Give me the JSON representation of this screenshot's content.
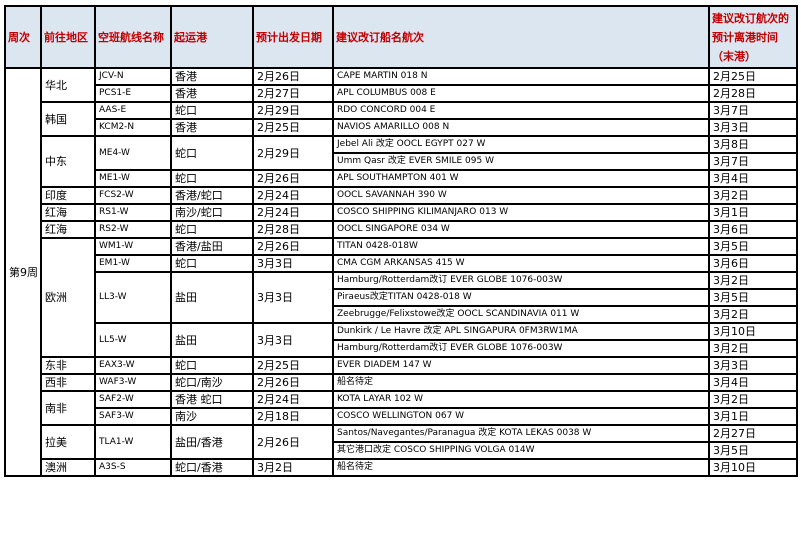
{
  "header": {
    "week": "周次",
    "region": "前往地区",
    "route": "空班航线名称",
    "port": "起运港",
    "date": "预计出发日期",
    "vessel": "建议改订船名航次",
    "eta": "建议改订航次的预计离港时间（末港）"
  },
  "week": "第9周",
  "colors": {
    "header_bg": "#dce6f1",
    "header_text": "#c00000"
  },
  "regions": [
    {
      "region": "华北",
      "routes": [
        {
          "route": "JCV-N",
          "port": "香港",
          "date": "2月26日",
          "vessels": [
            {
              "name": "CAPE MARTIN 018 N",
              "eta": "2月25日"
            }
          ]
        },
        {
          "route": "PCS1-E",
          "port": "香港",
          "date": "2月27日",
          "vessels": [
            {
              "name": "APL COLUMBUS 008 E",
              "eta": "2月28日"
            }
          ]
        }
      ]
    },
    {
      "region": "韩国",
      "routes": [
        {
          "route": "AAS-E",
          "port": "蛇口",
          "date": "2月29日",
          "vessels": [
            {
              "name": "RDO CONCORD 004 E",
              "eta": "3月7日"
            }
          ]
        },
        {
          "route": "KCM2-N",
          "port": "香港",
          "date": "2月25日",
          "vessels": [
            {
              "name": "NAVIOS AMARILLO 008 N",
              "eta": "3月3日"
            }
          ]
        }
      ]
    },
    {
      "region": "中东",
      "routes": [
        {
          "route": "ME4-W",
          "port": "蛇口",
          "date": "2月29日",
          "vessels": [
            {
              "name": "Jebel Ali 改定 OOCL EGYPT 027 W",
              "eta": "3月8日"
            },
            {
              "name": "Umm Qasr 改定 EVER SMILE 095 W",
              "eta": "3月7日"
            }
          ]
        },
        {
          "route": "ME1-W",
          "port": "蛇口",
          "date": "2月26日",
          "vessels": [
            {
              "name": "APL SOUTHAMPTON 401 W",
              "eta": "3月4日"
            }
          ]
        }
      ]
    },
    {
      "region": "印度",
      "routes": [
        {
          "route": "FCS2-W",
          "port": "香港/蛇口",
          "date": "2月24日",
          "vessels": [
            {
              "name": "OOCL SAVANNAH 390 W",
              "eta": "3月2日"
            }
          ]
        }
      ]
    },
    {
      "region": "红海",
      "routes": [
        {
          "route": "RS1-W",
          "port": "南沙/蛇口",
          "date": "2月24日",
          "vessels": [
            {
              "name": "COSCO SHIPPING KILIMANJARO 013 W",
              "eta": "3月1日"
            }
          ]
        }
      ]
    },
    {
      "region": "红海",
      "routes": [
        {
          "route": "RS2-W",
          "port": "蛇口",
          "date": "2月28日",
          "vessels": [
            {
              "name": "OOCL SINGAPORE 034 W",
              "eta": "3月6日"
            }
          ]
        }
      ]
    },
    {
      "region": "欧洲",
      "routes": [
        {
          "route": "WM1-W",
          "port": "香港/盐田",
          "date": "2月26日",
          "vessels": [
            {
              "name": "TITAN 0428-018W",
              "eta": "3月5日"
            }
          ]
        },
        {
          "route": "EM1-W",
          "port": "蛇口",
          "date": "3月3日",
          "vessels": [
            {
              "name": "CMA CGM ARKANSAS 415 W",
              "eta": "3月6日"
            }
          ]
        },
        {
          "route": "LL3-W",
          "port": "盐田",
          "date": "3月3日",
          "vessels": [
            {
              "name": "Hamburg/Rotterdam改订 EVER GLOBE 1076-003W",
              "eta": "3月2日"
            },
            {
              "name": "Piraeus改定TITAN 0428-018 W",
              "eta": "3月5日"
            },
            {
              "name": "Zeebrugge/Felixstowe改定 OOCL SCANDINAVIA 011 W",
              "eta": "3月2日"
            }
          ]
        },
        {
          "route": "LL5-W",
          "port": "盐田",
          "date": "3月3日",
          "vessels": [
            {
              "name": "Dunkirk / Le Havre 改定 APL SINGAPURA 0FM3RW1MA",
              "eta": "3月10日"
            },
            {
              "name": "Hamburg/Rotterdam改订 EVER GLOBE 1076-003W",
              "eta": "3月2日"
            }
          ]
        }
      ]
    },
    {
      "region": "东非",
      "routes": [
        {
          "route": "EAX3-W",
          "port": "蛇口",
          "date": "2月25日",
          "vessels": [
            {
              "name": "EVER DIADEM 147 W",
              "eta": "3月3日"
            }
          ]
        }
      ]
    },
    {
      "region": "西非",
      "routes": [
        {
          "route": "WAF3-W",
          "port": "蛇口/南沙",
          "date": "2月26日",
          "vessels": [
            {
              "name": "船名待定",
              "eta": "3月4日"
            }
          ]
        }
      ]
    },
    {
      "region": "南非",
      "routes": [
        {
          "route": "SAF2-W",
          "port": "香港 蛇口",
          "date": "2月24日",
          "vessels": [
            {
              "name": "KOTA LAYAR 102 W",
              "eta": "3月2日"
            }
          ]
        },
        {
          "route": "SAF3-W",
          "port": "南沙",
          "date": "2月18日",
          "vessels": [
            {
              "name": "COSCO WELLINGTON 067 W",
              "eta": "3月1日"
            }
          ]
        }
      ]
    },
    {
      "region": "拉美",
      "routes": [
        {
          "route": "TLA1-W",
          "port": "盐田/香港",
          "date": "2月26日",
          "vessels": [
            {
              "name": "Santos/Navegantes/Paranagua 改定 KOTA LEKAS 0038 W",
              "eta": "2月27日"
            },
            {
              "name": "其它港口改定 COSCO SHIPPING VOLGA 014W",
              "eta": "3月5日"
            }
          ]
        }
      ]
    },
    {
      "region": "澳洲",
      "routes": [
        {
          "route": "A3S-S",
          "port": "蛇口/香港",
          "date": "3月2日",
          "vessels": [
            {
              "name": "船名待定",
              "eta": "3月10日"
            }
          ]
        }
      ]
    }
  ]
}
